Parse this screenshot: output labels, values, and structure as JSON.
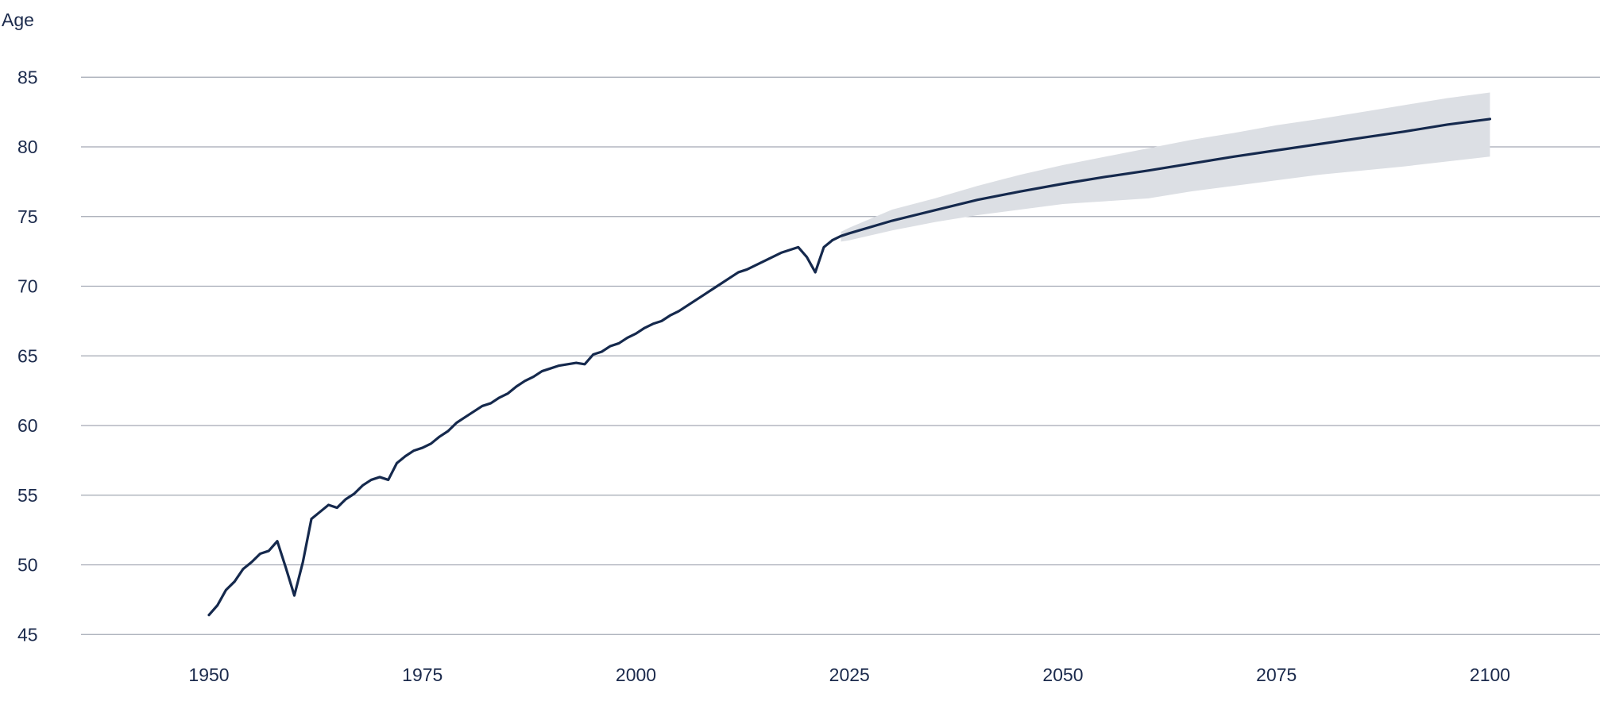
{
  "chart_data": {
    "type": "line",
    "title": "",
    "xlabel": "",
    "ylabel": "Age",
    "xlim": [
      1950,
      2100
    ],
    "ylim": [
      45,
      85
    ],
    "x_ticks": [
      "1950",
      "1975",
      "2000",
      "2025",
      "2050",
      "2075",
      "2100"
    ],
    "y_ticks": [
      "45",
      "50",
      "55",
      "60",
      "65",
      "70",
      "75",
      "80",
      "85"
    ],
    "grid": "horizontal",
    "legend": "none",
    "colors": {
      "line": "#15294d",
      "band": "#dcdfe4",
      "grid": "#a3a8b3",
      "text": "#1b2a4c"
    },
    "series": [
      {
        "kind": "historical",
        "x": [
          1950,
          1951,
          1952,
          1953,
          1954,
          1955,
          1956,
          1957,
          1958,
          1959,
          1960,
          1961,
          1962,
          1963,
          1964,
          1965,
          1966,
          1967,
          1968,
          1969,
          1970,
          1971,
          1972,
          1973,
          1974,
          1975,
          1976,
          1977,
          1978,
          1979,
          1980,
          1981,
          1982,
          1983,
          1984,
          1985,
          1986,
          1987,
          1988,
          1989,
          1990,
          1991,
          1992,
          1993,
          1994,
          1995,
          1996,
          1997,
          1998,
          1999,
          2000,
          2001,
          2002,
          2003,
          2004,
          2005,
          2006,
          2007,
          2008,
          2009,
          2010,
          2011,
          2012,
          2013,
          2014,
          2015,
          2016,
          2017,
          2018,
          2019,
          2020,
          2021,
          2022,
          2023
        ],
        "y": [
          46.4,
          47.1,
          48.2,
          48.8,
          49.7,
          50.2,
          50.8,
          51.0,
          51.7,
          49.8,
          47.8,
          50.2,
          53.3,
          53.8,
          54.3,
          54.1,
          54.7,
          55.1,
          55.7,
          56.1,
          56.3,
          56.1,
          57.3,
          57.8,
          58.2,
          58.4,
          58.7,
          59.2,
          59.6,
          60.2,
          60.6,
          61.0,
          61.4,
          61.6,
          62.0,
          62.3,
          62.8,
          63.2,
          63.5,
          63.9,
          64.1,
          64.3,
          64.4,
          64.5,
          64.4,
          65.1,
          65.3,
          65.7,
          65.9,
          66.3,
          66.6,
          67.0,
          67.3,
          67.5,
          67.9,
          68.2,
          68.6,
          69.0,
          69.4,
          69.8,
          70.2,
          70.6,
          71.0,
          71.2,
          71.5,
          71.8,
          72.1,
          72.4,
          72.6,
          72.8,
          72.1,
          71.0,
          72.8,
          73.3
        ]
      },
      {
        "kind": "projection",
        "x": [
          2023,
          2024,
          2025,
          2030,
          2035,
          2040,
          2045,
          2050,
          2055,
          2060,
          2065,
          2070,
          2075,
          2080,
          2085,
          2090,
          2095,
          2100
        ],
        "y": [
          73.3,
          73.6,
          73.8,
          74.7,
          75.45,
          76.2,
          76.8,
          77.35,
          77.85,
          78.3,
          78.8,
          79.3,
          79.75,
          80.2,
          80.65,
          81.1,
          81.6,
          82.0
        ]
      }
    ],
    "band": {
      "x": [
        2024,
        2025,
        2030,
        2035,
        2040,
        2045,
        2050,
        2055,
        2060,
        2065,
        2070,
        2075,
        2080,
        2085,
        2090,
        2095,
        2100
      ],
      "upper": [
        73.9,
        74.2,
        75.5,
        76.3,
        77.2,
        78.0,
        78.7,
        79.3,
        79.9,
        80.5,
        81.0,
        81.55,
        82.0,
        82.5,
        83.0,
        83.5,
        83.9
      ],
      "lower": [
        73.2,
        73.3,
        74.0,
        74.6,
        75.1,
        75.5,
        75.9,
        76.1,
        76.3,
        76.8,
        77.2,
        77.6,
        78.0,
        78.3,
        78.6,
        78.95,
        79.3
      ]
    }
  }
}
